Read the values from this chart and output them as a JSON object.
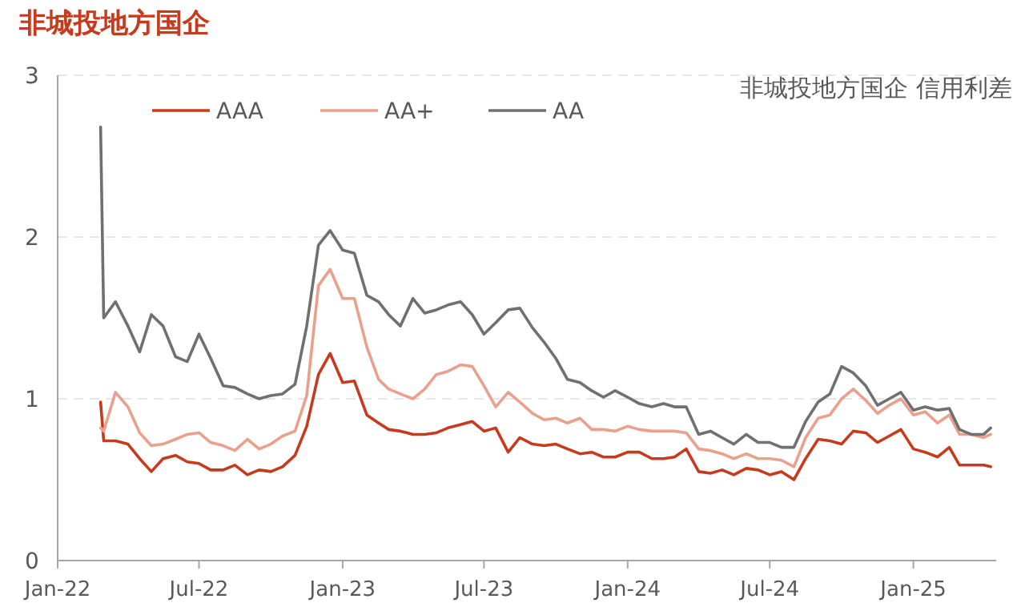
{
  "chart_data": {
    "type": "line",
    "title": "非城投地方国企",
    "subtitle": "非城投地方国企 信用利差",
    "x": [
      "2022-02-25",
      "2022-03-01",
      "2022-03-16",
      "2022-04-01",
      "2022-04-16",
      "2022-05-01",
      "2022-05-16",
      "2022-06-01",
      "2022-06-16",
      "2022-07-01",
      "2022-07-16",
      "2022-08-01",
      "2022-08-16",
      "2022-09-01",
      "2022-09-16",
      "2022-10-01",
      "2022-10-16",
      "2022-11-01",
      "2022-11-16",
      "2022-12-01",
      "2022-12-16",
      "2023-01-01",
      "2023-01-16",
      "2023-02-01",
      "2023-02-16",
      "2023-03-01",
      "2023-03-16",
      "2023-04-01",
      "2023-04-16",
      "2023-05-01",
      "2023-05-16",
      "2023-06-01",
      "2023-06-16",
      "2023-07-01",
      "2023-07-16",
      "2023-08-01",
      "2023-08-16",
      "2023-09-01",
      "2023-09-16",
      "2023-10-01",
      "2023-10-16",
      "2023-11-01",
      "2023-11-16",
      "2023-12-01",
      "2023-12-16",
      "2024-01-01",
      "2024-01-16",
      "2024-02-01",
      "2024-02-16",
      "2024-03-01",
      "2024-03-16",
      "2024-04-01",
      "2024-04-16",
      "2024-05-01",
      "2024-05-16",
      "2024-06-01",
      "2024-06-16",
      "2024-07-01",
      "2024-07-16",
      "2024-08-01",
      "2024-08-16",
      "2024-09-01",
      "2024-09-16",
      "2024-10-01",
      "2024-10-16",
      "2024-11-01",
      "2024-11-16",
      "2024-12-01",
      "2024-12-16",
      "2025-01-01",
      "2025-01-16",
      "2025-02-01",
      "2025-02-16",
      "2025-03-01",
      "2025-03-16",
      "2025-04-01",
      "2025-04-10"
    ],
    "series": [
      {
        "name": "AAA",
        "color": "#c63b1e",
        "values": [
          0.98,
          0.74,
          0.74,
          0.72,
          0.63,
          0.55,
          0.63,
          0.65,
          0.61,
          0.6,
          0.56,
          0.56,
          0.59,
          0.53,
          0.56,
          0.55,
          0.58,
          0.65,
          0.83,
          1.15,
          1.28,
          1.1,
          1.11,
          0.9,
          0.85,
          0.81,
          0.8,
          0.78,
          0.78,
          0.79,
          0.82,
          0.84,
          0.86,
          0.8,
          0.82,
          0.67,
          0.76,
          0.72,
          0.71,
          0.72,
          0.69,
          0.66,
          0.67,
          0.64,
          0.64,
          0.67,
          0.67,
          0.63,
          0.63,
          0.64,
          0.69,
          0.55,
          0.54,
          0.56,
          0.53,
          0.57,
          0.56,
          0.53,
          0.55,
          0.5,
          0.63,
          0.75,
          0.74,
          0.72,
          0.8,
          0.79,
          0.73,
          0.77,
          0.81,
          0.69,
          0.67,
          0.64,
          0.7,
          0.59,
          0.59,
          0.59,
          0.58
        ]
      },
      {
        "name": "AA+",
        "color": "#e9a08c",
        "values": [
          0.82,
          0.8,
          1.04,
          0.95,
          0.79,
          0.71,
          0.72,
          0.75,
          0.78,
          0.79,
          0.73,
          0.71,
          0.68,
          0.75,
          0.69,
          0.72,
          0.77,
          0.8,
          1.02,
          1.7,
          1.8,
          1.62,
          1.62,
          1.32,
          1.12,
          1.06,
          1.03,
          1.0,
          1.06,
          1.15,
          1.17,
          1.21,
          1.2,
          1.08,
          0.95,
          1.04,
          0.98,
          0.91,
          0.87,
          0.88,
          0.85,
          0.88,
          0.81,
          0.81,
          0.8,
          0.83,
          0.81,
          0.8,
          0.8,
          0.8,
          0.79,
          0.69,
          0.68,
          0.66,
          0.63,
          0.66,
          0.63,
          0.63,
          0.62,
          0.58,
          0.76,
          0.88,
          0.9,
          1.0,
          1.06,
          0.99,
          0.91,
          0.96,
          1.0,
          0.9,
          0.92,
          0.85,
          0.9,
          0.78,
          0.78,
          0.76,
          0.78
        ]
      },
      {
        "name": "AA",
        "color": "#707070",
        "values": [
          2.68,
          1.5,
          1.6,
          1.45,
          1.29,
          1.52,
          1.45,
          1.26,
          1.23,
          1.4,
          1.25,
          1.08,
          1.07,
          1.03,
          1.0,
          1.02,
          1.03,
          1.09,
          1.45,
          1.95,
          2.04,
          1.92,
          1.9,
          1.64,
          1.6,
          1.52,
          1.45,
          1.62,
          1.53,
          1.55,
          1.58,
          1.6,
          1.52,
          1.4,
          1.47,
          1.55,
          1.56,
          1.44,
          1.35,
          1.25,
          1.12,
          1.1,
          1.05,
          1.01,
          1.05,
          1.01,
          0.97,
          0.95,
          0.97,
          0.95,
          0.95,
          0.78,
          0.8,
          0.76,
          0.72,
          0.78,
          0.73,
          0.73,
          0.7,
          0.7,
          0.86,
          0.98,
          1.03,
          1.2,
          1.16,
          1.08,
          0.96,
          1.0,
          1.04,
          0.93,
          0.95,
          0.93,
          0.94,
          0.81,
          0.78,
          0.78,
          0.82
        ]
      }
    ],
    "xlim": [
      "2022-01-01",
      "2025-04-17"
    ],
    "xticks": [
      {
        "value": "2022-01-01",
        "label": "Jan-22"
      },
      {
        "value": "2022-07-01",
        "label": "Jul-22"
      },
      {
        "value": "2023-01-01",
        "label": "Jan-23"
      },
      {
        "value": "2023-07-01",
        "label": "Jul-23"
      },
      {
        "value": "2024-01-01",
        "label": "Jan-24"
      },
      {
        "value": "2024-07-01",
        "label": "Jul-24"
      },
      {
        "value": "2025-01-01",
        "label": "Jan-25"
      }
    ],
    "ylim": [
      0,
      3
    ],
    "yticks": [
      0,
      1,
      2,
      3
    ],
    "grid": "y",
    "legend": "top",
    "marker": "none",
    "line_style": "solid"
  }
}
